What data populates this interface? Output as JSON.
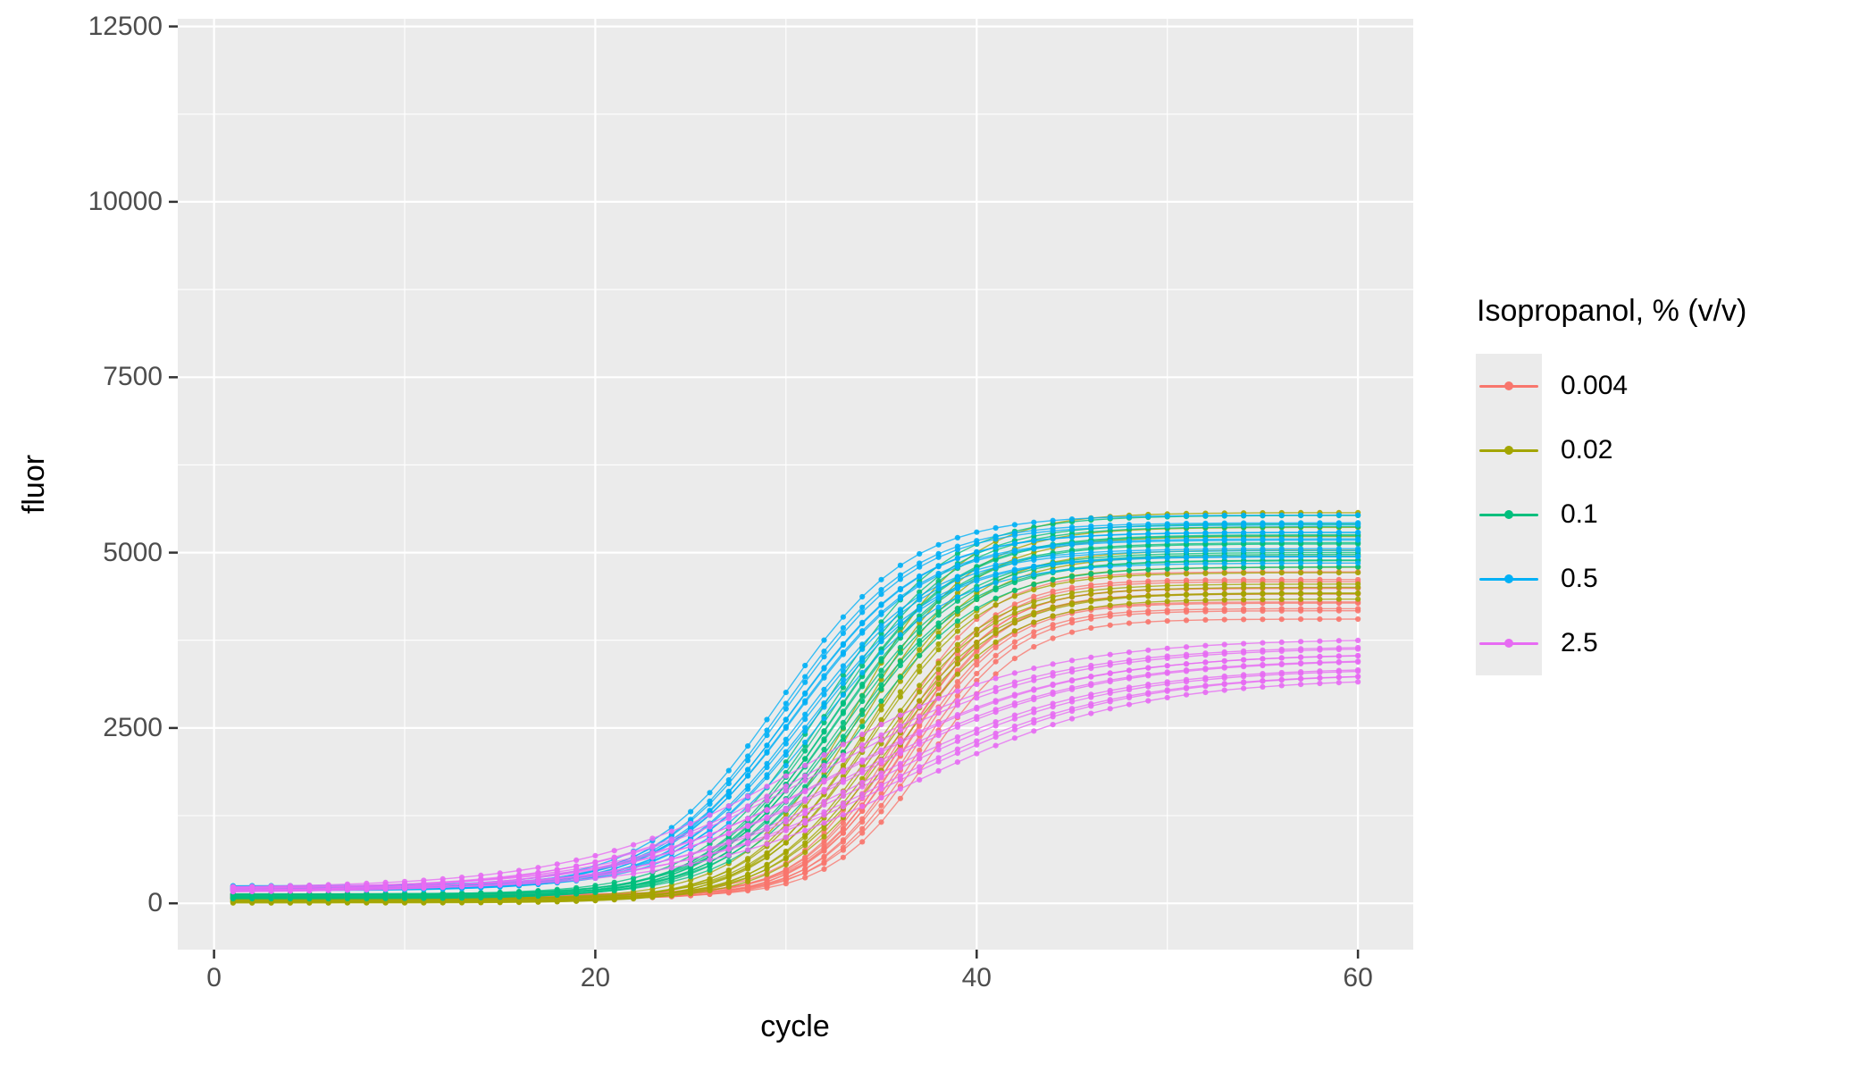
{
  "figure": {
    "background": "#FFFFFF"
  },
  "panel": {
    "background": "#EBEBEB",
    "grid_color": "#FFFFFF",
    "tick_mark_color": "#333333",
    "tick_label_color": "#4D4D4D"
  },
  "legend": {
    "title": "Isopropanol, % (v/v)",
    "position": "right",
    "entries": [
      {
        "label": "0.004",
        "color": "#F8766D"
      },
      {
        "label": "0.02",
        "color": "#A3A500"
      },
      {
        "label": "0.1",
        "color": "#00BF7D"
      },
      {
        "label": "0.5",
        "color": "#00B0F6"
      },
      {
        "label": "2.5",
        "color": "#E76BF3"
      }
    ]
  },
  "chart_data": {
    "type": "line",
    "title": "",
    "xlabel": "cycle",
    "ylabel": "fluor",
    "x_ticks": [
      0,
      20,
      40,
      60
    ],
    "x_minor_ticks": [
      10,
      30,
      50
    ],
    "y_ticks": [
      0,
      2500,
      5000,
      7500,
      10000,
      12500
    ],
    "y_minor_ticks": [
      1250,
      3750,
      6250,
      8750,
      11250
    ],
    "xlim": [
      -1.9,
      62.9
    ],
    "ylim": [
      -660,
      12610
    ],
    "grid": "white major+minor gridlines on grey panel",
    "legend_title": "Isopropanol, % (v/v)",
    "legend_position": "right",
    "x_values": "integer cycles 1 to 60, point marker drawn at every cycle",
    "model": "fluor(cycle) = base + plateau / (1 + exp(-(cycle - mid)/slope))",
    "series": [
      {
        "name": "0.004",
        "color": "#F8766D",
        "n_replicates": 12,
        "slope": 2.5,
        "mid": [
          35.6,
          35.8,
          36.0,
          36.1,
          36.2,
          36.3,
          36.4,
          36.5,
          36.7,
          36.9,
          37.2,
          37.5
        ],
        "plateau": [
          4600,
          4540,
          4480,
          4430,
          4380,
          4330,
          4280,
          4230,
          4180,
          4120,
          4050,
          3960
        ],
        "base": [
          125,
          75,
          105,
          60,
          117,
          87,
          129,
          67,
          100,
          80,
          121,
          92
        ]
      },
      {
        "name": "0.02",
        "color": "#A3A500",
        "n_replicates": 12,
        "slope": 2.9,
        "mid": [
          33.7,
          33.9,
          34.1,
          34.3,
          34.4,
          34.5,
          34.6,
          34.8,
          35.0,
          35.2,
          35.5,
          35.8
        ],
        "plateau": [
          5500,
          5340,
          5180,
          5030,
          4890,
          4760,
          4640,
          4540,
          4460,
          4400,
          4350,
          4300
        ],
        "base": [
          70,
          20,
          50,
          5,
          62,
          32,
          74,
          12,
          45,
          25,
          66,
          37
        ]
      },
      {
        "name": "0.1",
        "color": "#00BF7D",
        "n_replicates": 12,
        "slope": 3.2,
        "mid": [
          32.0,
          32.2,
          32.4,
          32.5,
          32.6,
          32.7,
          32.8,
          32.9,
          33.1,
          33.3,
          33.5,
          33.8
        ],
        "plateau": [
          5400,
          5330,
          5260,
          5190,
          5120,
          5050,
          4990,
          4930,
          4870,
          4810,
          4760,
          4700
        ],
        "base": [
          130,
          80,
          110,
          65,
          122,
          92,
          134,
          72,
          105,
          85,
          126,
          97
        ]
      },
      {
        "name": "0.5",
        "color": "#00B0F6",
        "n_replicates": 12,
        "slope": 3.4,
        "mid": [
          29.7,
          29.9,
          30.1,
          30.3,
          30.4,
          30.5,
          30.6,
          30.8,
          31.0,
          31.2,
          31.4,
          31.7
        ],
        "plateau": [
          5290,
          5230,
          5170,
          5110,
          5050,
          4990,
          4930,
          4870,
          4810,
          4750,
          4700,
          4640
        ],
        "base": [
          245,
          195,
          225,
          180,
          237,
          207,
          249,
          187,
          220,
          200,
          241,
          212
        ]
      },
      {
        "name": "2.5",
        "color": "#E76BF3",
        "n_replicates": 12,
        "slope": 5.9,
        "mid": [
          31.2,
          31.7,
          32.2,
          32.7,
          33.1,
          33.5,
          33.9,
          34.3,
          34.8,
          35.3,
          35.9,
          36.5
        ],
        "plateau": [
          3560,
          3510,
          3460,
          3410,
          3360,
          3310,
          3260,
          3210,
          3160,
          3110,
          3070,
          3030
        ],
        "base": [
          215,
          165,
          195,
          150,
          207,
          177,
          219,
          157,
          190,
          170,
          211,
          182
        ]
      }
    ]
  }
}
